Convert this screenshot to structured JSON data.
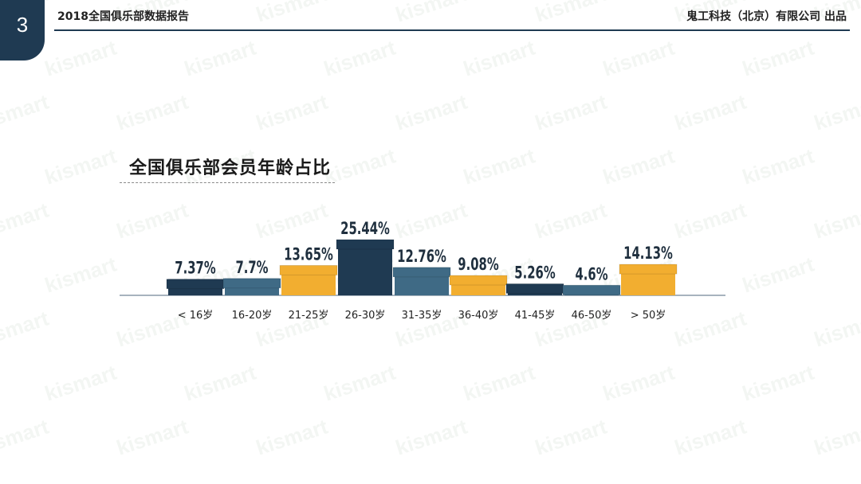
{
  "slide": {
    "number": "3",
    "report_title": "2018全国俱乐部数据报告",
    "company": "鬼工科技（北京）有限公司 出品",
    "watermark_text": "kismart"
  },
  "chart_data": {
    "type": "bar",
    "title": "全国俱乐部会员年龄占比",
    "categories": [
      "< 16岁",
      "16-20岁",
      "21-25岁",
      "26-30岁",
      "31-35岁",
      "36-40岁",
      "41-45岁",
      "46-50岁",
      "> 50岁"
    ],
    "values": [
      7.37,
      7.7,
      13.65,
      25.44,
      12.76,
      9.08,
      5.26,
      4.6,
      14.13
    ],
    "value_labels": [
      "7.37%",
      "7.7%",
      "13.65%",
      "25.44%",
      "12.76%",
      "9.08%",
      "5.26%",
      "4.6%",
      "14.13%"
    ],
    "unit": "%",
    "ylim": [
      0,
      25.44
    ],
    "colors": [
      "#1f3a52",
      "#3f6a85",
      "#f2ae30",
      "#1f3a52",
      "#3f6a85",
      "#f2ae30",
      "#1f3a52",
      "#3f6a85",
      "#f2ae30"
    ],
    "grid": false,
    "legend": "none"
  }
}
